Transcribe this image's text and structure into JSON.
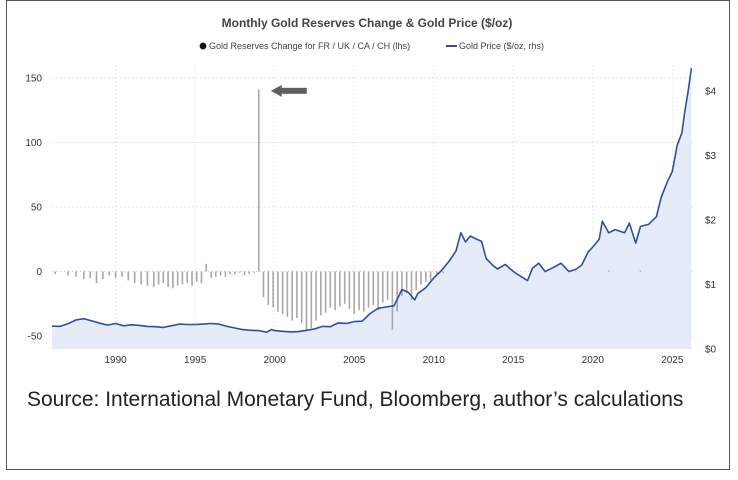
{
  "chart_data": {
    "type": "bar+line",
    "title": "Monthly Gold Reserves Change & Gold Price ($/oz)",
    "legend": [
      {
        "name": "Gold Reserves Change for FR / UK / CA / CH (lhs)",
        "color": "#111111",
        "marker": "dot"
      },
      {
        "name": "Gold Price ($/oz, rhs)",
        "color": "#2e4fa0",
        "marker": "line"
      }
    ],
    "x_range": [
      1986,
      2026.3
    ],
    "x_ticks": [
      "1990",
      "1995",
      "2000",
      "2005",
      "2010",
      "2015",
      "2020",
      "2025"
    ],
    "y_left": {
      "range": [
        -60,
        160
      ],
      "ticks": [
        150,
        100,
        50,
        0,
        -50
      ],
      "tick_labels": [
        "150",
        "100",
        "50",
        "0",
        "-50"
      ]
    },
    "y_right": {
      "range": [
        0,
        4400
      ],
      "ticks": [
        4000,
        3000,
        2000,
        1000,
        0
      ],
      "tick_labels": [
        "$4.000",
        "$3.000",
        "$2.000",
        "$1.000",
        "$0"
      ]
    },
    "annotation": {
      "type": "arrow",
      "target_year": 1999.0,
      "target_value": 140
    },
    "series": [
      {
        "name": "Gold Reserves Change for FR / UK / CA / CH (lhs)",
        "kind": "bar",
        "color": "#a8a8a8",
        "points": [
          [
            1986.2,
            -2
          ],
          [
            1987.0,
            -3
          ],
          [
            1987.5,
            -4
          ],
          [
            1988.0,
            -6
          ],
          [
            1988.4,
            -5
          ],
          [
            1988.8,
            -9
          ],
          [
            1989.2,
            -6
          ],
          [
            1989.6,
            -3
          ],
          [
            1990.0,
            -5
          ],
          [
            1990.4,
            -4
          ],
          [
            1990.8,
            -7
          ],
          [
            1991.2,
            -9
          ],
          [
            1991.6,
            -10
          ],
          [
            1992.0,
            -11
          ],
          [
            1992.4,
            -12
          ],
          [
            1992.7,
            -10
          ],
          [
            1993.0,
            -9
          ],
          [
            1993.3,
            -12
          ],
          [
            1993.6,
            -13
          ],
          [
            1993.9,
            -11
          ],
          [
            1994.2,
            -10
          ],
          [
            1994.5,
            -9
          ],
          [
            1994.8,
            -11
          ],
          [
            1995.1,
            -8
          ],
          [
            1995.4,
            -9
          ],
          [
            1995.7,
            6
          ],
          [
            1996.0,
            -5
          ],
          [
            1996.3,
            -4
          ],
          [
            1996.6,
            -3
          ],
          [
            1996.9,
            -4
          ],
          [
            1997.2,
            -2
          ],
          [
            1997.5,
            -2
          ],
          [
            1997.8,
            -1
          ],
          [
            1998.1,
            -3
          ],
          [
            1998.4,
            -2
          ],
          [
            1998.7,
            -1
          ],
          [
            1999.0,
            141
          ],
          [
            1999.3,
            -20
          ],
          [
            1999.6,
            -26
          ],
          [
            1999.9,
            -28
          ],
          [
            2000.2,
            -31
          ],
          [
            2000.5,
            -33
          ],
          [
            2000.8,
            -35
          ],
          [
            2001.1,
            -38
          ],
          [
            2001.4,
            -36
          ],
          [
            2001.7,
            -40
          ],
          [
            2002.0,
            -46
          ],
          [
            2002.3,
            -44
          ],
          [
            2002.6,
            -38
          ],
          [
            2002.9,
            -34
          ],
          [
            2003.2,
            -32
          ],
          [
            2003.5,
            -28
          ],
          [
            2003.8,
            -30
          ],
          [
            2004.1,
            -27
          ],
          [
            2004.4,
            -25
          ],
          [
            2004.7,
            -29
          ],
          [
            2005.0,
            -33
          ],
          [
            2005.3,
            -30
          ],
          [
            2005.6,
            -31
          ],
          [
            2005.9,
            -28
          ],
          [
            2006.2,
            -26
          ],
          [
            2006.5,
            -30
          ],
          [
            2006.8,
            -24
          ],
          [
            2007.1,
            -22
          ],
          [
            2007.4,
            -45
          ],
          [
            2007.7,
            -31
          ],
          [
            2008.0,
            -19
          ],
          [
            2008.3,
            -17
          ],
          [
            2008.6,
            -22
          ],
          [
            2008.9,
            -14
          ],
          [
            2009.2,
            -10
          ],
          [
            2009.5,
            -8
          ],
          [
            2009.8,
            -7
          ],
          [
            2010.2,
            -2
          ],
          [
            2010.6,
            -1
          ],
          [
            2021.0,
            1
          ],
          [
            2023.0,
            1
          ]
        ]
      },
      {
        "name": "Gold Price ($/oz, rhs)",
        "kind": "area-line",
        "color": "#2e4fa0",
        "fill": "#e6ecf7",
        "points": [
          [
            1986.0,
            355
          ],
          [
            1986.5,
            350
          ],
          [
            1987.0,
            390
          ],
          [
            1987.5,
            450
          ],
          [
            1988.0,
            470
          ],
          [
            1988.5,
            435
          ],
          [
            1989.0,
            400
          ],
          [
            1989.5,
            370
          ],
          [
            1990.0,
            395
          ],
          [
            1990.5,
            360
          ],
          [
            1991.0,
            375
          ],
          [
            1991.5,
            365
          ],
          [
            1992.0,
            350
          ],
          [
            1992.5,
            345
          ],
          [
            1993.0,
            335
          ],
          [
            1993.5,
            360
          ],
          [
            1994.0,
            385
          ],
          [
            1994.5,
            380
          ],
          [
            1995.0,
            380
          ],
          [
            1995.5,
            385
          ],
          [
            1996.0,
            395
          ],
          [
            1996.5,
            385
          ],
          [
            1997.0,
            350
          ],
          [
            1997.5,
            325
          ],
          [
            1998.0,
            300
          ],
          [
            1998.5,
            290
          ],
          [
            1999.0,
            285
          ],
          [
            1999.5,
            260
          ],
          [
            1999.8,
            300
          ],
          [
            2000.0,
            285
          ],
          [
            2000.5,
            275
          ],
          [
            2001.0,
            265
          ],
          [
            2001.5,
            270
          ],
          [
            2002.0,
            290
          ],
          [
            2002.5,
            310
          ],
          [
            2003.0,
            350
          ],
          [
            2003.5,
            345
          ],
          [
            2004.0,
            405
          ],
          [
            2004.5,
            395
          ],
          [
            2005.0,
            425
          ],
          [
            2005.5,
            430
          ],
          [
            2006.0,
            550
          ],
          [
            2006.5,
            630
          ],
          [
            2007.0,
            650
          ],
          [
            2007.5,
            670
          ],
          [
            2008.0,
            920
          ],
          [
            2008.4,
            880
          ],
          [
            2008.8,
            760
          ],
          [
            2009.0,
            860
          ],
          [
            2009.5,
            950
          ],
          [
            2010.0,
            1100
          ],
          [
            2010.5,
            1220
          ],
          [
            2011.0,
            1370
          ],
          [
            2011.4,
            1520
          ],
          [
            2011.7,
            1800
          ],
          [
            2012.0,
            1660
          ],
          [
            2012.3,
            1750
          ],
          [
            2012.7,
            1700
          ],
          [
            2013.0,
            1670
          ],
          [
            2013.3,
            1400
          ],
          [
            2013.7,
            1300
          ],
          [
            2014.0,
            1240
          ],
          [
            2014.5,
            1310
          ],
          [
            2015.0,
            1200
          ],
          [
            2015.5,
            1120
          ],
          [
            2015.9,
            1060
          ],
          [
            2016.2,
            1250
          ],
          [
            2016.6,
            1330
          ],
          [
            2017.0,
            1200
          ],
          [
            2017.5,
            1260
          ],
          [
            2018.0,
            1330
          ],
          [
            2018.5,
            1200
          ],
          [
            2018.9,
            1230
          ],
          [
            2019.3,
            1300
          ],
          [
            2019.7,
            1500
          ],
          [
            2020.0,
            1580
          ],
          [
            2020.4,
            1700
          ],
          [
            2020.6,
            1980
          ],
          [
            2021.0,
            1800
          ],
          [
            2021.4,
            1850
          ],
          [
            2022.0,
            1800
          ],
          [
            2022.3,
            1950
          ],
          [
            2022.7,
            1640
          ],
          [
            2023.0,
            1900
          ],
          [
            2023.5,
            1930
          ],
          [
            2024.0,
            2050
          ],
          [
            2024.3,
            2350
          ],
          [
            2024.7,
            2600
          ],
          [
            2025.0,
            2750
          ],
          [
            2025.3,
            3150
          ],
          [
            2025.6,
            3350
          ],
          [
            2025.8,
            3700
          ],
          [
            2026.0,
            4000
          ],
          [
            2026.2,
            4350
          ]
        ]
      }
    ]
  },
  "source": {
    "text": "Source: International Monetary Fund, Bloomberg, author’s calculations"
  }
}
